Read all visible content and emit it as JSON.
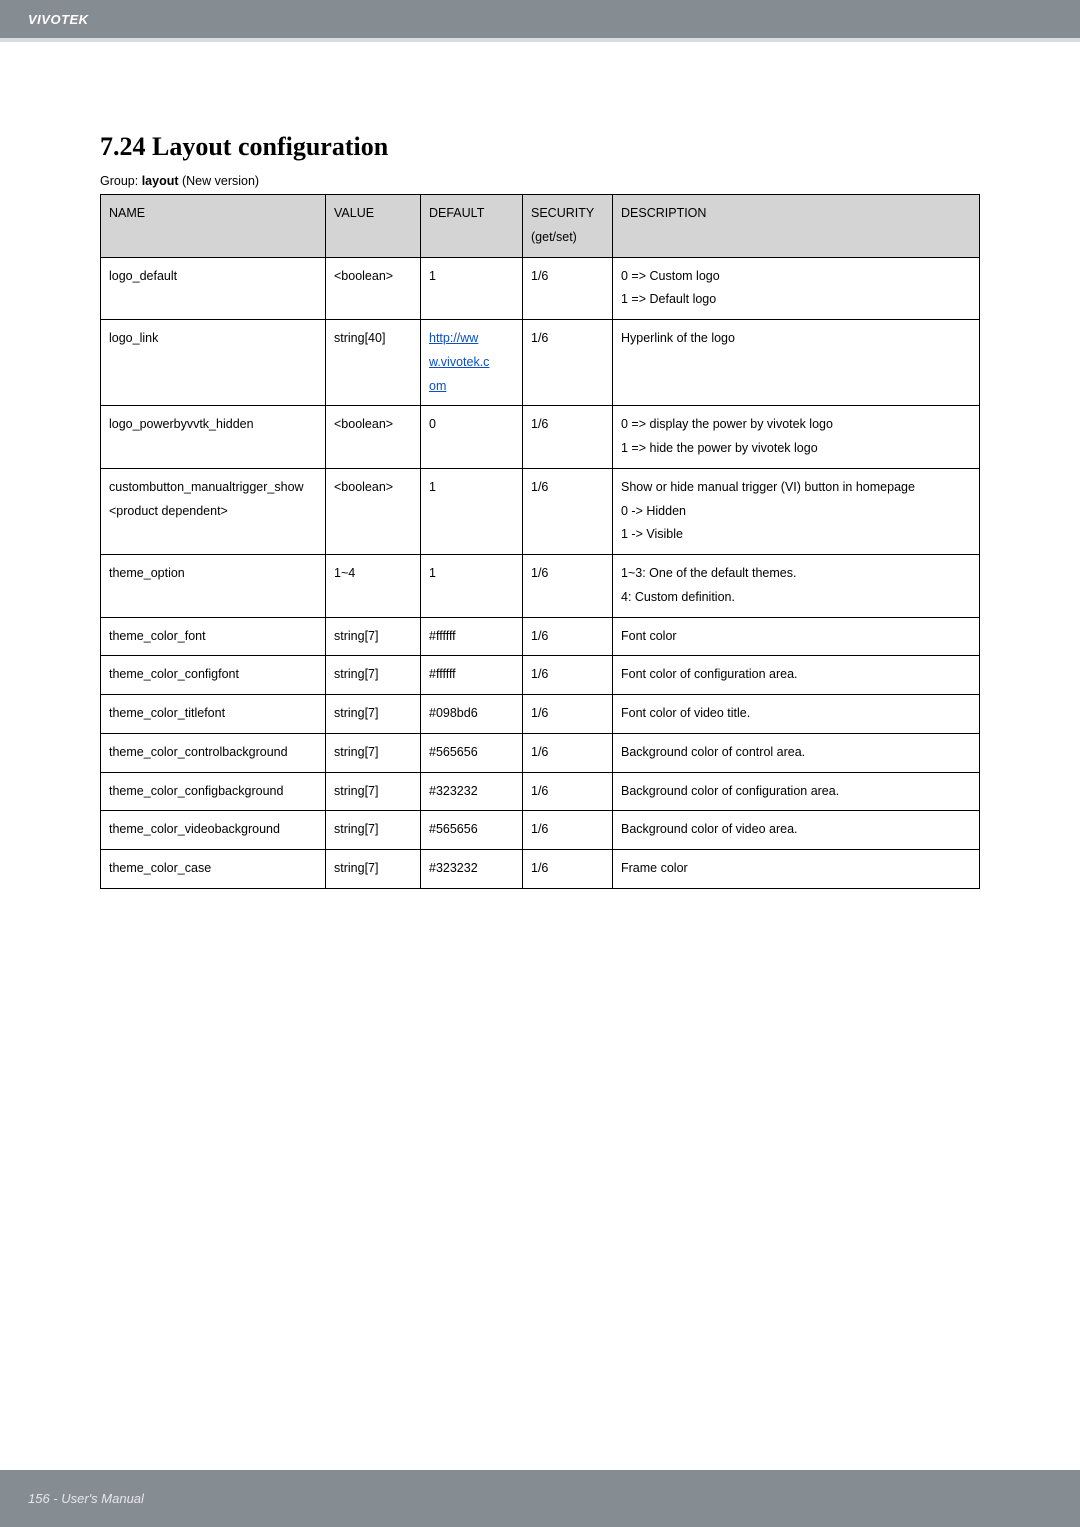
{
  "header": {
    "brand": "VIVOTEK"
  },
  "section": {
    "title": "7.24 Layout configuration",
    "group_prefix": "Group: ",
    "group_name": "layout",
    "group_suffix": " (New version)"
  },
  "table": {
    "columns": {
      "name": "NAME",
      "value": "VALUE",
      "default": "DEFAULT",
      "security": "SECURITY (get/set)",
      "desc": "DESCRIPTION"
    },
    "col_widths": {
      "name": 225,
      "value": 95,
      "default": 102,
      "security": 90
    },
    "header_bg": "#d4d4d4",
    "border_color": "#000000",
    "rows": [
      {
        "name": "logo_default",
        "value": "<boolean>",
        "default": "1",
        "security": "1/6",
        "desc": "0 => Custom logo\n1 => Default logo"
      },
      {
        "name": "logo_link",
        "value": "string[40]",
        "default_link": "http://www.vivotek.com",
        "default_link_parts": [
          "http://ww",
          "w.vivotek.c",
          "om"
        ],
        "security": "1/6",
        "desc": "Hyperlink of the logo"
      },
      {
        "name": "logo_powerbyvvtk_hidden",
        "value": "<boolean>",
        "default": "0",
        "security": "1/6",
        "desc": "0 => display the power by vivotek logo\n1 => hide the power by vivotek logo"
      },
      {
        "name": "custombutton_manualtrigger_show\n<product dependent>",
        "value": "<boolean>",
        "default": "1",
        "security": "1/6",
        "desc": "Show or hide manual trigger (VI) button in homepage\n0 -> Hidden\n1 -> Visible"
      },
      {
        "name": "theme_option",
        "value": "1~4",
        "default": "1",
        "security": "1/6",
        "desc": "1~3: One of the default themes.\n4: Custom definition."
      },
      {
        "name": "theme_color_font",
        "value": "string[7]",
        "default": "#ffffff",
        "security": "1/6",
        "desc": "Font color"
      },
      {
        "name": "theme_color_configfont",
        "value": "string[7]",
        "default": "#ffffff",
        "security": "1/6",
        "desc": "Font color of configuration area."
      },
      {
        "name": "theme_color_titlefont",
        "value": "string[7]",
        "default": "#098bd6",
        "security": "1/6",
        "desc": "Font color of video title."
      },
      {
        "name": "theme_color_controlbackground",
        "value": "string[7]",
        "default": "#565656",
        "security": "1/6",
        "desc": "Background color of control area."
      },
      {
        "name": "theme_color_configbackground",
        "value": "string[7]",
        "default": "#323232",
        "security": "1/6",
        "desc": "Background color of configuration area."
      },
      {
        "name": "theme_color_videobackground",
        "value": "string[7]",
        "default": "#565656",
        "security": "1/6",
        "desc": "Background color of video area."
      },
      {
        "name": "theme_color_case",
        "value": "string[7]",
        "default": "#323232",
        "security": "1/6",
        "desc": "Frame color"
      }
    ]
  },
  "footer": {
    "page": "156 - User's Manual"
  },
  "colors": {
    "header_bg": "#858c92",
    "header_border": "#d8dcde",
    "link": "#0b4fc7",
    "text": "#000000",
    "page_bg": "#ffffff"
  }
}
